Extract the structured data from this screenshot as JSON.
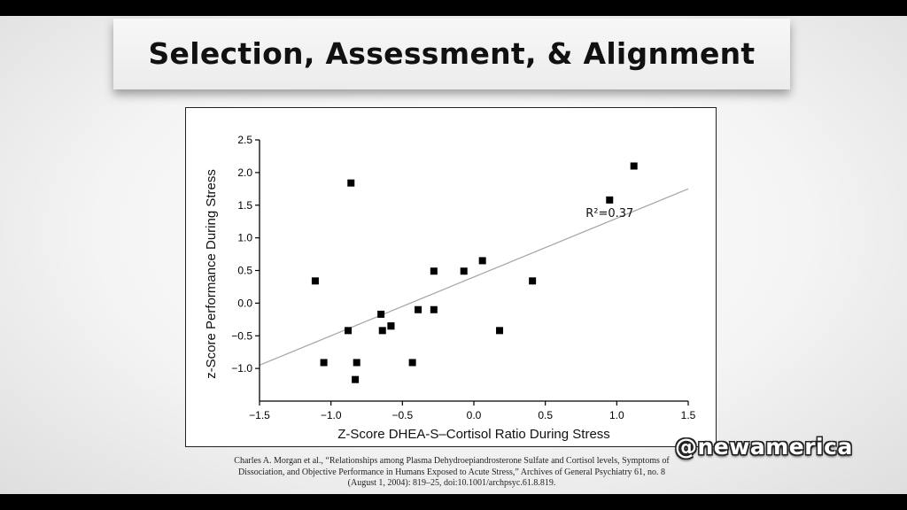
{
  "slide": {
    "title": "Selection, Assessment, & Alignment",
    "citation_lines": [
      "Charles A. Morgan et al., “Relationships  among Plasma Dehydroepiandrosterone  Sulfate and Cortisol levels, Symptoms  of",
      "Dissociation,  and Objective Performance  in Humans Exposed to Acute Stress,”  Archives of General Psychiatry  61, no. 8",
      "(August 1, 2004): 819–25, doi:10.1001/archpsyc.61.8.819."
    ],
    "watermark": "@newamerica"
  },
  "chart_data": {
    "type": "scatter",
    "title": "",
    "xlabel": "Z-Score DHEA-S–Cortisol Ratio During Stress",
    "ylabel": "z-Score Performance During Stress",
    "xlim": [
      -1.5,
      1.5
    ],
    "ylim": [
      -1.5,
      2.5
    ],
    "xticks": [
      -1.5,
      -1.0,
      -0.5,
      0.0,
      0.5,
      1.0,
      1.5
    ],
    "xtick_labels": [
      "−1.5",
      "−1.0",
      "−0.5",
      "0.0",
      "0.5",
      "1.0",
      "1.5"
    ],
    "yticks": [
      2.5,
      2.0,
      1.5,
      1.0,
      0.5,
      0.0,
      -0.5,
      -1.0
    ],
    "ytick_labels": [
      "2.5",
      "2.0",
      "1.5",
      "1.0",
      "0.5",
      "0.0",
      "−0.5",
      "−1.0"
    ],
    "grid": false,
    "points": [
      {
        "x": -1.11,
        "y": 0.34
      },
      {
        "x": -1.05,
        "y": -0.91
      },
      {
        "x": -0.86,
        "y": 1.84
      },
      {
        "x": -0.88,
        "y": -0.42
      },
      {
        "x": -0.82,
        "y": -0.91
      },
      {
        "x": -0.83,
        "y": -1.17
      },
      {
        "x": -0.65,
        "y": -0.17
      },
      {
        "x": -0.64,
        "y": -0.42
      },
      {
        "x": -0.58,
        "y": -0.35
      },
      {
        "x": -0.58,
        "y": -0.35
      },
      {
        "x": -0.39,
        "y": -0.1
      },
      {
        "x": -0.43,
        "y": -0.91
      },
      {
        "x": -0.28,
        "y": 0.49
      },
      {
        "x": -0.28,
        "y": -0.1
      },
      {
        "x": -0.07,
        "y": 0.49
      },
      {
        "x": 0.06,
        "y": 0.65
      },
      {
        "x": 0.18,
        "y": -0.42
      },
      {
        "x": 0.41,
        "y": 0.34
      },
      {
        "x": 0.95,
        "y": 1.58
      },
      {
        "x": 1.12,
        "y": 2.1
      }
    ],
    "trendline": {
      "x1": -1.5,
      "y1": -0.95,
      "x2": 1.5,
      "y2": 1.75
    },
    "annotation": {
      "text": "R²=0.37",
      "x": 0.95,
      "y": 1.32
    },
    "colors": {
      "points": "#000000",
      "trendline": "#a8a8a8",
      "axes": "#000000"
    }
  }
}
